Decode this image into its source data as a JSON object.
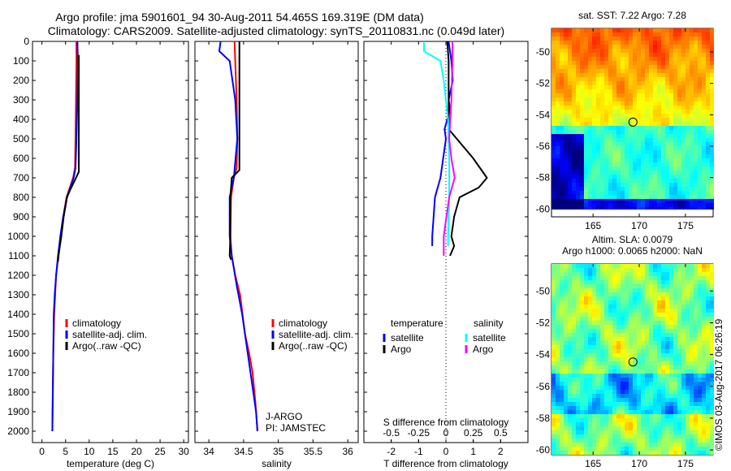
{
  "title": [
    "Argo profile: jma 5901601_94 30-Aug-2011 54.465S 169.319E (DM data)",
    "Climatology: CARS2009. Satellite-adjusted climatology: synTS_20110831.nc (0.049d later)"
  ],
  "watermark": "©IMOS 03-Aug-2017 06:26:19",
  "chart_data": [
    {
      "type": "line",
      "id": "temp",
      "xlabel": "temperature (deg C)",
      "xlim": [
        -2,
        31
      ],
      "xticks": [
        0,
        5,
        10,
        15,
        20,
        25,
        30
      ],
      "ylim": [
        0,
        2080
      ],
      "yticks": [
        0,
        100,
        200,
        300,
        400,
        500,
        600,
        700,
        800,
        900,
        1000,
        1100,
        1200,
        1300,
        1400,
        1500,
        1600,
        1700,
        1800,
        1900,
        2000
      ],
      "legend": [
        "climatology",
        "satellite-adj. clim.",
        "Argo(..raw -QC)"
      ],
      "series": [
        {
          "name": "climatology",
          "color": "#ff0000",
          "x": [
            7.3,
            7.3,
            7.2,
            7.1,
            7.0,
            6.6,
            5.9,
            5.2,
            4.5,
            3.9,
            3.5,
            3.0,
            2.8,
            2.6,
            2.4,
            2.3,
            2.2
          ],
          "y": [
            0,
            100,
            300,
            500,
            650,
            700,
            750,
            800,
            900,
            1000,
            1100,
            1200,
            1300,
            1400,
            1600,
            1800,
            2000
          ]
        },
        {
          "name": "satellite-adj. clim.",
          "color": "#0000ff",
          "x": [
            7.5,
            7.6,
            7.5,
            7.3,
            7.1,
            6.7,
            6.0,
            5.3,
            4.5,
            3.9,
            3.4,
            3.0,
            2.7,
            2.5,
            2.4,
            2.3,
            2.2
          ],
          "y": [
            0,
            100,
            300,
            500,
            650,
            700,
            750,
            800,
            900,
            1000,
            1100,
            1200,
            1300,
            1400,
            1600,
            1800,
            2000
          ]
        },
        {
          "name": "Argo(..raw -QC)",
          "color": "#000000",
          "x": [
            7.8,
            7.8,
            7.8,
            7.8,
            7.8,
            7.0,
            6.0,
            5.3,
            4.6,
            4.1,
            3.5,
            3.4
          ],
          "y": [
            70,
            100,
            300,
            500,
            670,
            710,
            760,
            800,
            900,
            1000,
            1100,
            1130
          ]
        }
      ]
    },
    {
      "type": "line",
      "id": "sal",
      "xlabel": "salinity",
      "xlim": [
        33.8,
        36.15
      ],
      "xticks": [
        34,
        34.5,
        35,
        35.5,
        36
      ],
      "annotation": [
        "J-ARGO",
        "PI: JAMSTEC"
      ],
      "legend": [
        "climatology",
        "satellite-adj. clim.",
        "Argo(..raw -QC)"
      ],
      "series": [
        {
          "name": "climatology",
          "color": "#ff0000",
          "x": [
            34.37,
            34.38,
            34.4,
            34.41,
            34.4,
            34.36,
            34.32,
            34.31,
            34.33,
            34.38,
            34.45,
            34.52,
            34.58,
            34.63,
            34.67,
            34.7
          ],
          "y": [
            0,
            100,
            300,
            500,
            650,
            700,
            800,
            1000,
            1100,
            1200,
            1300,
            1500,
            1600,
            1700,
            1850,
            2000
          ]
        },
        {
          "name": "satellite-adj. clim.",
          "color": "#0000ff",
          "x": [
            34.17,
            34.15,
            34.3,
            34.38,
            34.41,
            34.36,
            34.3,
            34.3,
            34.33,
            34.4,
            34.48,
            34.56,
            34.62,
            34.68,
            34.7
          ],
          "y": [
            0,
            50,
            100,
            300,
            500,
            700,
            800,
            1000,
            1100,
            1250,
            1400,
            1600,
            1750,
            1900,
            2000
          ]
        },
        {
          "name": "Argo(..raw -QC)",
          "color": "#000000",
          "x": [
            34.44,
            34.44,
            34.44,
            34.44,
            34.33,
            34.31,
            34.31,
            34.3,
            34.32
          ],
          "y": [
            0,
            100,
            300,
            660,
            700,
            800,
            1000,
            1100,
            1120
          ]
        }
      ]
    },
    {
      "type": "line",
      "id": "diff",
      "xlabel": "T difference from climatology",
      "x2label": "S difference from climatology",
      "xlim": [
        -3,
        3
      ],
      "xticks": [
        -2,
        -1,
        0,
        1,
        2
      ],
      "x2ticks": [
        -0.5,
        -0.25,
        0,
        0.25,
        0.5
      ],
      "legend_titles": [
        "temperature",
        "salinity"
      ],
      "legend": [
        "satellite",
        "Argo",
        "satellite",
        "Argo"
      ],
      "series": [
        {
          "name": "T satellite",
          "color": "#0000ff",
          "x": [
            0.1,
            0.2,
            0.25,
            0.1,
            0.15,
            0.05,
            -0.05,
            0,
            -0.1,
            -0.2,
            -0.4,
            -0.45,
            -0.5,
            -0.5
          ],
          "y": [
            0,
            100,
            200,
            300,
            350,
            400,
            450,
            500,
            600,
            700,
            800,
            900,
            1000,
            1050
          ]
        },
        {
          "name": "T Argo",
          "color": "#000000",
          "x": [
            0.05,
            0.1,
            0.1,
            0.1,
            0.4,
            1.0,
            1.5,
            1.2,
            0.5,
            0.3,
            0.2,
            0.3,
            0.15
          ],
          "y": [
            0,
            100,
            300,
            450,
            500,
            600,
            700,
            750,
            800,
            900,
            1000,
            1050,
            1100
          ]
        },
        {
          "name": "S satellite",
          "color": "#00ffff",
          "x": [
            -0.2,
            -0.2,
            -0.05,
            -0.02,
            0.02,
            0.03,
            0.03,
            0.02,
            0.02
          ],
          "y": [
            0,
            50,
            100,
            200,
            400,
            600,
            800,
            1000,
            1050
          ]
        },
        {
          "name": "S Argo",
          "color": "#ff00ff",
          "x": [
            0.06,
            0.06,
            0.05,
            0.03,
            0.05,
            0.08,
            0.03,
            -0.02,
            -0.02
          ],
          "y": [
            0,
            100,
            300,
            500,
            600,
            700,
            800,
            1000,
            1100
          ]
        }
      ]
    },
    {
      "type": "heatmap",
      "id": "sst",
      "title": "sat. SST: 7.22 Argo: 7.28",
      "xlim": [
        160.5,
        178
      ],
      "ylim": [
        -60.5,
        -48.5
      ],
      "xticks": [
        165,
        170,
        175
      ],
      "yticks": [
        -50,
        -52,
        -54,
        -56,
        -58,
        -60
      ],
      "marker": [
        169.319,
        -54.465
      ]
    },
    {
      "type": "heatmap",
      "id": "sla",
      "title": [
        "Altim. SLA: 0.0079",
        "Argo h1000: 0.0065 h2000: NaN"
      ],
      "xlim": [
        160.5,
        178
      ],
      "ylim": [
        -60.3,
        -48.3
      ],
      "xticks": [
        165,
        170,
        175
      ],
      "yticks": [
        -50,
        -52,
        -54,
        -56,
        -58,
        -60
      ],
      "marker": [
        169.319,
        -54.465
      ]
    }
  ]
}
